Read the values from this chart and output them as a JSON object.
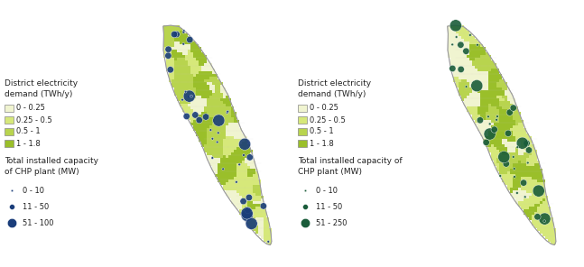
{
  "fig_width": 6.47,
  "fig_height": 2.96,
  "dpi": 100,
  "background_color": "#ffffff",
  "map_fill_colors": [
    "#f0f4d0",
    "#d6e87a",
    "#b8d44e",
    "#9abf2a"
  ],
  "map_edge_color": "#cccccc",
  "map_outline_color": "#999999",
  "legend_demand_labels": [
    "0 - 0.25",
    "0.25 - 0.5",
    "0.5 - 1",
    "1 - 1.8"
  ],
  "legend_demand_colors": [
    "#f0f4d0",
    "#d6e87a",
    "#b8d44e",
    "#9abf2a"
  ],
  "left_dot_color": "#1a3d7a",
  "right_dot_color": "#1a5c3a",
  "left_chp_labels": [
    "0 - 10",
    "11 - 50",
    "51 - 100"
  ],
  "right_chp_labels": [
    "0 - 10",
    "11 - 50",
    "51 - 250"
  ],
  "font_size_small": 6.5,
  "font_size_label": 6.0
}
